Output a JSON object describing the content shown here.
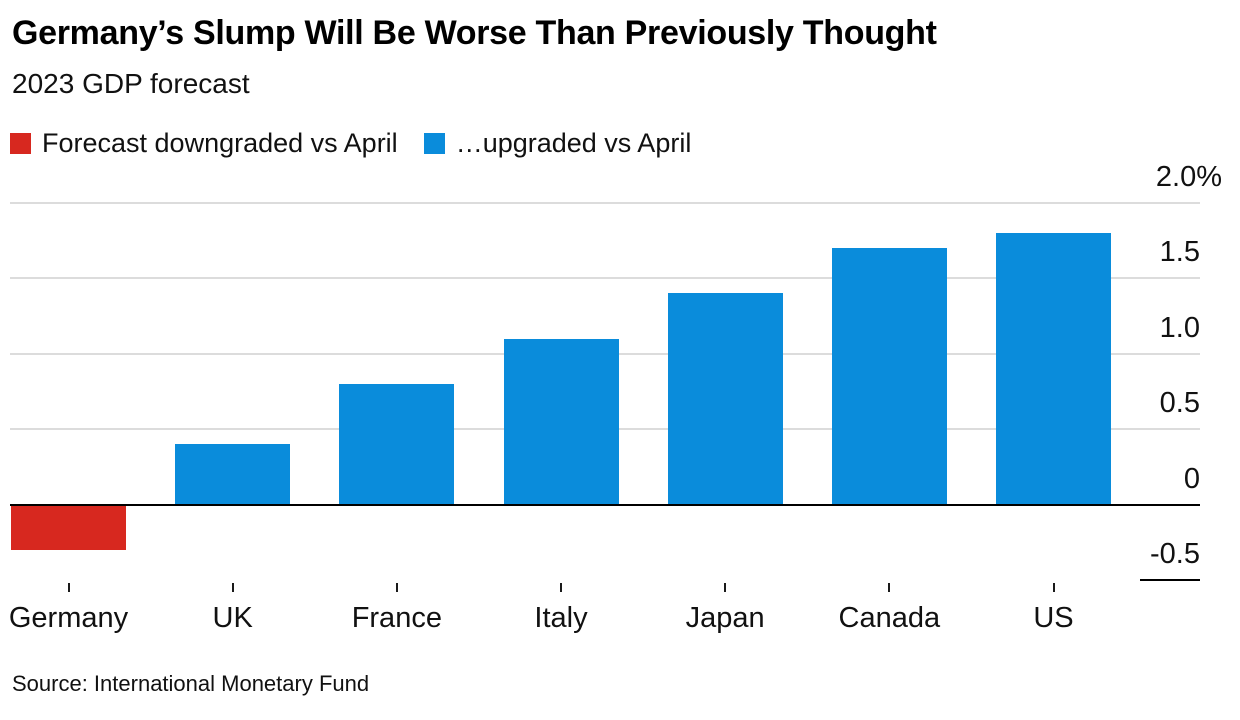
{
  "header": {
    "title": "Germany’s Slump Will Be Worse Than Previously Thought",
    "subtitle": "2023 GDP forecast"
  },
  "legend": [
    {
      "name": "downgraded",
      "label": "Forecast downgraded vs April",
      "color": "#d7281f"
    },
    {
      "name": "upgraded",
      "label": "…upgraded vs April",
      "color": "#0a8cdb"
    }
  ],
  "chart_data": {
    "type": "bar",
    "title": "2023 GDP forecast",
    "unit": "%",
    "categories": [
      "Germany",
      "UK",
      "France",
      "Italy",
      "Japan",
      "Canada",
      "US"
    ],
    "values": [
      -0.3,
      0.4,
      0.8,
      1.1,
      1.4,
      1.7,
      1.8
    ],
    "series_color_rule": "negative values use downgrade red, positive values use upgrade blue",
    "ylim": [
      -0.5,
      2.0
    ],
    "yticks": [
      {
        "label": "2.0%",
        "value": 2.0
      },
      {
        "label": "1.5",
        "value": 1.5
      },
      {
        "label": "1.0",
        "value": 1.0
      },
      {
        "label": "0.5",
        "value": 0.5
      },
      {
        "label": "0",
        "value": 0
      },
      {
        "label": "-0.5",
        "value": -0.5
      }
    ],
    "grid": "horizontal",
    "legend_position": "top-left",
    "axis_side": "right"
  },
  "colors": {
    "downgrade": "#d7281f",
    "upgrade": "#0a8cdb",
    "grid": "#dcdcdc",
    "axis": "#000000",
    "text": "#111111"
  },
  "source": {
    "text": "Source: International Monetary Fund"
  }
}
